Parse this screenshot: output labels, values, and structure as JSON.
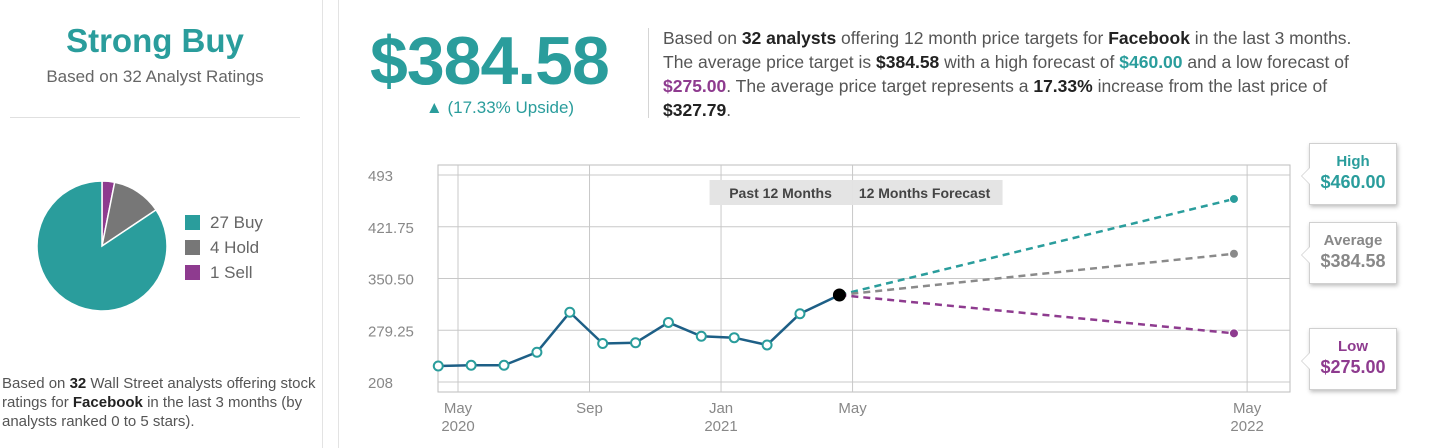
{
  "rating": {
    "label": "Strong Buy",
    "sub": "Based on 32 Analyst Ratings"
  },
  "breakdown": [
    {
      "label": "27 Buy",
      "count": 27,
      "color": "#2a9d9c"
    },
    {
      "label": "4 Hold",
      "count": 4,
      "color": "#777777"
    },
    {
      "label": "1 Sell",
      "count": 1,
      "color": "#8e3b8f"
    }
  ],
  "left_desc": {
    "p1": "Based on ",
    "count": "32",
    "p2": " Wall Street analysts offering stock ratings for ",
    "company": "Facebook",
    "p3": " in the last 3 months (by analysts ranked 0 to 5 stars)."
  },
  "price_target": {
    "value": "$384.58",
    "arrow": "▲",
    "upside": "(17.33% Upside)"
  },
  "summary": {
    "t1": "Based on ",
    "analysts": "32 analysts",
    "t2": " offering 12 month price targets for ",
    "company": "Facebook",
    "t3": " in the last 3 months. The average price target is ",
    "avg": "$384.58",
    "t4": " with a high forecast of ",
    "high": "$460.00",
    "t5": " and a low forecast of ",
    "low": "$275.00",
    "t6": ". The average price target represents a ",
    "pct": "17.33%",
    "t7": " increase from the last price of ",
    "last": "$327.79",
    "t8": "."
  },
  "chart_data": {
    "type": "line",
    "ylim": [
      208,
      493
    ],
    "yticks": [
      {
        "value": 208,
        "label": "208"
      },
      {
        "value": 279.25,
        "label": "279.25"
      },
      {
        "value": 350.5,
        "label": "350.50"
      },
      {
        "value": 421.75,
        "label": "421.75"
      },
      {
        "value": 493,
        "label": "493"
      }
    ],
    "xticks": [
      {
        "month": 0,
        "line1": "May",
        "line2": "2020"
      },
      {
        "month": 4,
        "line1": "Sep",
        "line2": ""
      },
      {
        "month": 8,
        "line1": "Jan",
        "line2": "2021"
      },
      {
        "month": 12,
        "line1": "May",
        "line2": ""
      },
      {
        "month": 24,
        "line1": "May",
        "line2": "2022"
      }
    ],
    "month_range": [
      0,
      25
    ],
    "legend_past": "Past 12 Months",
    "legend_forecast": "12 Months Forecast",
    "history": [
      {
        "month": -0.6,
        "value": 230
      },
      {
        "month": 0.4,
        "value": 231
      },
      {
        "month": 1.4,
        "value": 231
      },
      {
        "month": 2.4,
        "value": 249
      },
      {
        "month": 3.4,
        "value": 304
      },
      {
        "month": 4.4,
        "value": 261
      },
      {
        "month": 5.4,
        "value": 262
      },
      {
        "month": 6.4,
        "value": 290
      },
      {
        "month": 7.4,
        "value": 271
      },
      {
        "month": 8.4,
        "value": 269
      },
      {
        "month": 9.4,
        "value": 259
      },
      {
        "month": 10.4,
        "value": 302
      },
      {
        "month": 11.6,
        "value": 327.79
      }
    ],
    "forecasts": [
      {
        "name": "High",
        "value": 460,
        "label": "$460.00",
        "color": "#2a9d9c"
      },
      {
        "name": "Average",
        "value": 384.58,
        "label": "$384.58",
        "color": "#8a8a8a"
      },
      {
        "name": "Low",
        "value": 275,
        "label": "$275.00",
        "color": "#8e3b8f"
      }
    ],
    "forecast_month": 23.6,
    "history_color": "#1d5f86",
    "marker_color": "#2a9d9c"
  }
}
